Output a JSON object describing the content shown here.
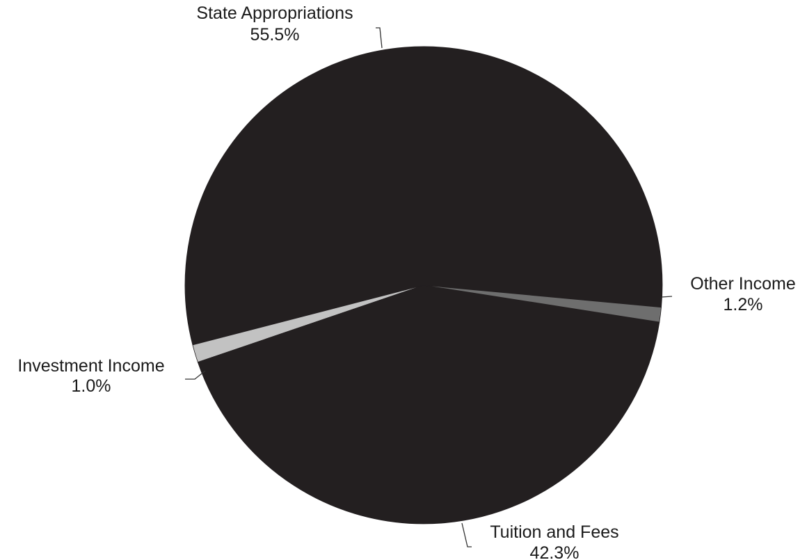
{
  "chart_data": {
    "type": "pie",
    "title": "",
    "slices": [
      {
        "label": "State Appropriations",
        "value": 55.5,
        "value_label": "55.5%",
        "color": "#231f20"
      },
      {
        "label": "Other Income",
        "value": 1.2,
        "value_label": "1.2%",
        "color": "#c2c2c2"
      },
      {
        "label": "Tuition and Fees",
        "value": 42.3,
        "value_label": "42.3%",
        "color": "#231f20"
      },
      {
        "label": "Investment Income",
        "value": 1.0,
        "value_label": "1.0%",
        "color": "#6e6e6e"
      }
    ],
    "legend": "none",
    "labels": "outside with leader lines"
  }
}
